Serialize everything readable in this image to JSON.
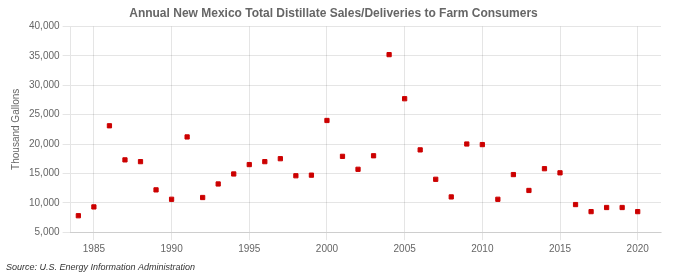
{
  "chart_data": {
    "type": "scatter",
    "title": "Annual New Mexico Total Distillate Sales/Deliveries to Farm Consumers",
    "y_label": "Thousand Gallons",
    "annotations": [
      "Source: U.S. Energy Information Administration"
    ],
    "x": [
      1984,
      1985,
      1986,
      1987,
      1988,
      1989,
      1990,
      1991,
      1992,
      1993,
      1994,
      1995,
      1996,
      1997,
      1998,
      1999,
      2000,
      2001,
      2002,
      2003,
      2004,
      2005,
      2006,
      2007,
      2008,
      2009,
      2010,
      2011,
      2012,
      2013,
      2014,
      2015,
      2016,
      2017,
      2018,
      2019,
      2020
    ],
    "values": [
      7800,
      9300,
      23100,
      17300,
      17000,
      12200,
      10600,
      21200,
      10900,
      13200,
      14900,
      16500,
      17000,
      17500,
      14600,
      14700,
      24000,
      17900,
      15700,
      18000,
      35200,
      27700,
      19000,
      14000,
      11000,
      20000,
      19900,
      10600,
      14800,
      12100,
      15800,
      15100,
      9700,
      8500,
      9200,
      9200,
      8500
    ],
    "color": "#cc0000",
    "marker": "square",
    "xlim": [
      1983.5,
      2021.5
    ],
    "xticks": [
      1985,
      1990,
      1995,
      2000,
      2005,
      2010,
      2015,
      2020
    ],
    "ylim": [
      5000,
      40000
    ],
    "yticks": [
      {
        "value": 5000,
        "label": "5,000"
      },
      {
        "value": 10000,
        "label": "10,000"
      },
      {
        "value": 15000,
        "label": "15,000"
      },
      {
        "value": 20000,
        "label": "20,000"
      },
      {
        "value": 25000,
        "label": "25,000"
      },
      {
        "value": 30000,
        "label": "30,000"
      },
      {
        "value": 35000,
        "label": "35,000"
      },
      {
        "value": 40000,
        "label": "40,000"
      }
    ],
    "grid": true
  }
}
